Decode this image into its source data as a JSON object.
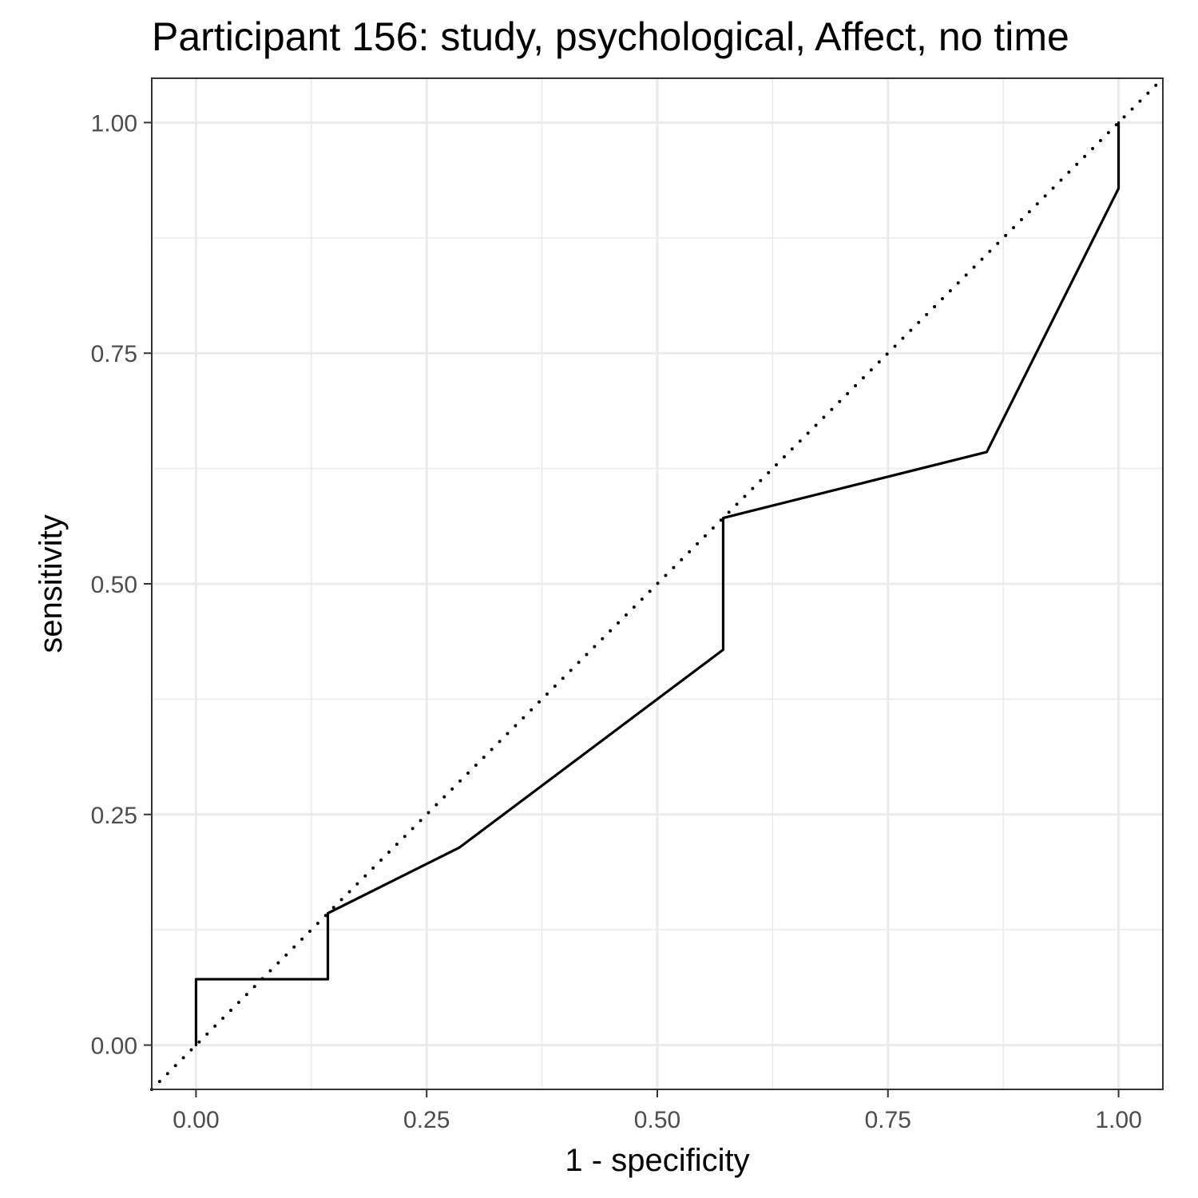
{
  "chart_data": {
    "type": "line",
    "title": "Participant 156: study, psychological, Affect, no time",
    "xlabel": "1 - specificity",
    "ylabel": "sensitivity",
    "xlim": [
      -0.048,
      1.048
    ],
    "ylim": [
      -0.048,
      1.048
    ],
    "x_ticks": [
      "0.00",
      "0.25",
      "0.50",
      "0.75",
      "1.00"
    ],
    "y_ticks": [
      "0.00",
      "0.25",
      "0.50",
      "0.75",
      "1.00"
    ],
    "grid": true,
    "legend": "none",
    "series": [
      {
        "style": "solid",
        "color": "#000000",
        "points": [
          [
            0.0,
            0.0
          ],
          [
            0.0,
            0.0714
          ],
          [
            0.1429,
            0.0714
          ],
          [
            0.1429,
            0.1429
          ],
          [
            0.2857,
            0.2143
          ],
          [
            0.5714,
            0.4286
          ],
          [
            0.5714,
            0.5714
          ],
          [
            0.8571,
            0.6429
          ],
          [
            1.0,
            0.9286
          ],
          [
            1.0,
            1.0
          ]
        ]
      },
      {
        "style": "dotted",
        "color": "#000000",
        "points": [
          [
            -0.048,
            -0.048
          ],
          [
            1.048,
            1.048
          ]
        ]
      }
    ]
  }
}
